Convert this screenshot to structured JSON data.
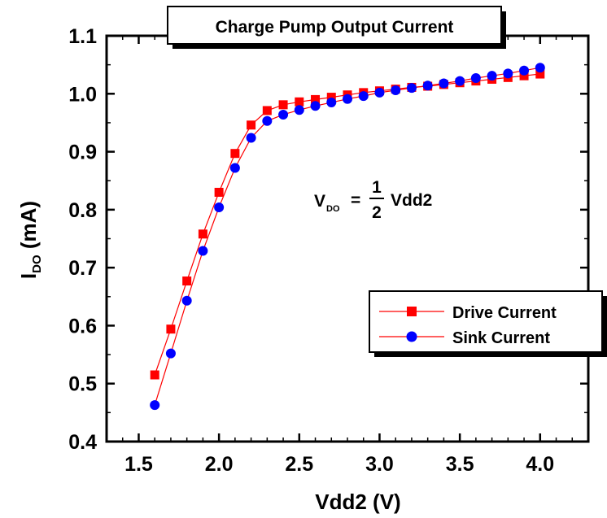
{
  "chart_data": {
    "type": "line",
    "title": "Charge Pump Output Current",
    "xlabel": "Vdd2 (V)",
    "ylabel": {
      "main": "I",
      "sub": "DO",
      "rest": " (mA)"
    },
    "xlim": [
      1.3,
      4.3
    ],
    "ylim": [
      0.4,
      1.1
    ],
    "xticks": [
      1.5,
      2.0,
      2.5,
      3.0,
      3.5,
      4.0
    ],
    "xtick_labels": [
      "1.5",
      "2.0",
      "2.5",
      "3.0",
      "3.5",
      "4.0"
    ],
    "yticks": [
      0.4,
      0.5,
      0.6,
      0.7,
      0.8,
      0.9,
      1.0,
      1.1
    ],
    "ytick_labels": [
      "0.4",
      "0.5",
      "0.6",
      "0.7",
      "0.8",
      "0.9",
      "1.0",
      "1.1"
    ],
    "grid": false,
    "legend_position": "lower-right",
    "annotation": {
      "lhs": "V",
      "lhs_sub": "DO",
      "eq": "=",
      "num": "1",
      "den": "2",
      "rhs": "Vdd2"
    },
    "series": [
      {
        "name": "Drive Current",
        "marker": "square",
        "color": "#ff0000",
        "line_color": "#ff0000",
        "x": [
          1.6,
          1.7,
          1.8,
          1.9,
          2.0,
          2.1,
          2.2,
          2.3,
          2.4,
          2.5,
          2.6,
          2.7,
          2.8,
          2.9,
          3.0,
          3.1,
          3.2,
          3.3,
          3.4,
          3.5,
          3.6,
          3.7,
          3.8,
          3.9,
          4.0
        ],
        "y": [
          0.515,
          0.594,
          0.677,
          0.758,
          0.83,
          0.897,
          0.946,
          0.971,
          0.981,
          0.986,
          0.99,
          0.994,
          0.998,
          1.002,
          1.005,
          1.008,
          1.011,
          1.013,
          1.016,
          1.019,
          1.022,
          1.025,
          1.028,
          1.031,
          1.034
        ]
      },
      {
        "name": "Sink Current",
        "marker": "circle",
        "color": "#0000ff",
        "line_color": "#ff0000",
        "x": [
          1.6,
          1.7,
          1.8,
          1.9,
          2.0,
          2.1,
          2.2,
          2.3,
          2.4,
          2.5,
          2.6,
          2.7,
          2.8,
          2.9,
          3.0,
          3.1,
          3.2,
          3.3,
          3.4,
          3.5,
          3.6,
          3.7,
          3.8,
          3.9,
          4.0
        ],
        "y": [
          0.463,
          0.552,
          0.643,
          0.729,
          0.804,
          0.872,
          0.924,
          0.953,
          0.964,
          0.972,
          0.979,
          0.985,
          0.991,
          0.996,
          1.002,
          1.006,
          1.01,
          1.014,
          1.018,
          1.022,
          1.027,
          1.031,
          1.035,
          1.04,
          1.045
        ]
      }
    ]
  }
}
